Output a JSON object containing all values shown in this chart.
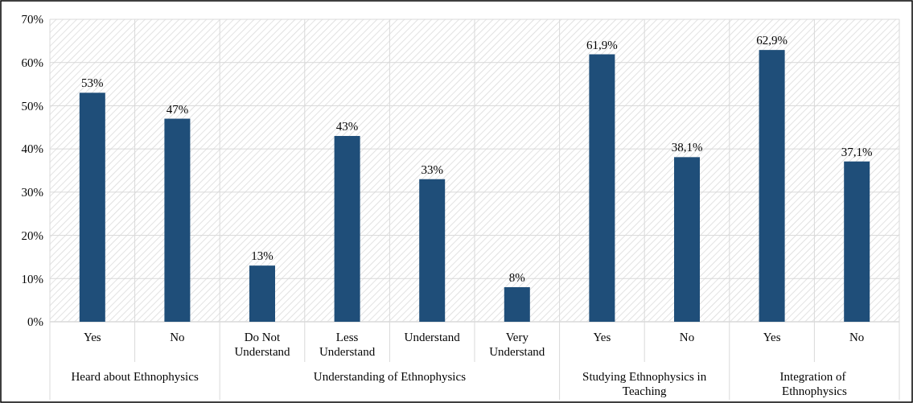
{
  "chart_data": {
    "type": "bar",
    "categories": [
      "Yes",
      "No",
      "Do Not Understand",
      "Less Understand",
      "Understand",
      "Very Understand",
      "Yes",
      "No",
      "Yes",
      "No"
    ],
    "values": [
      53,
      47,
      13,
      43,
      33,
      8,
      61.9,
      38.1,
      62.9,
      37.1
    ],
    "value_labels": [
      "53%",
      "47%",
      "13%",
      "43%",
      "33%",
      "8%",
      "61,9%",
      "38,1%",
      "62,9%",
      "37,1%"
    ],
    "color": "#1f4e79",
    "ylim": [
      0,
      70
    ],
    "yticks": [
      {
        "value": 0,
        "label": "0%"
      },
      {
        "value": 10,
        "label": "10%"
      },
      {
        "value": 20,
        "label": "20%"
      },
      {
        "value": 30,
        "label": "30%"
      },
      {
        "value": 40,
        "label": "40%"
      },
      {
        "value": 50,
        "label": "50%"
      },
      {
        "value": 60,
        "label": "60%"
      },
      {
        "value": 70,
        "label": "70%"
      }
    ],
    "grid": "y",
    "annotations": [
      "Heard about Ethnophysics",
      "Understanding of Ethnophysics",
      "Studying Ethnophysics in Teaching",
      "Integration of  Ethnophysics"
    ]
  }
}
